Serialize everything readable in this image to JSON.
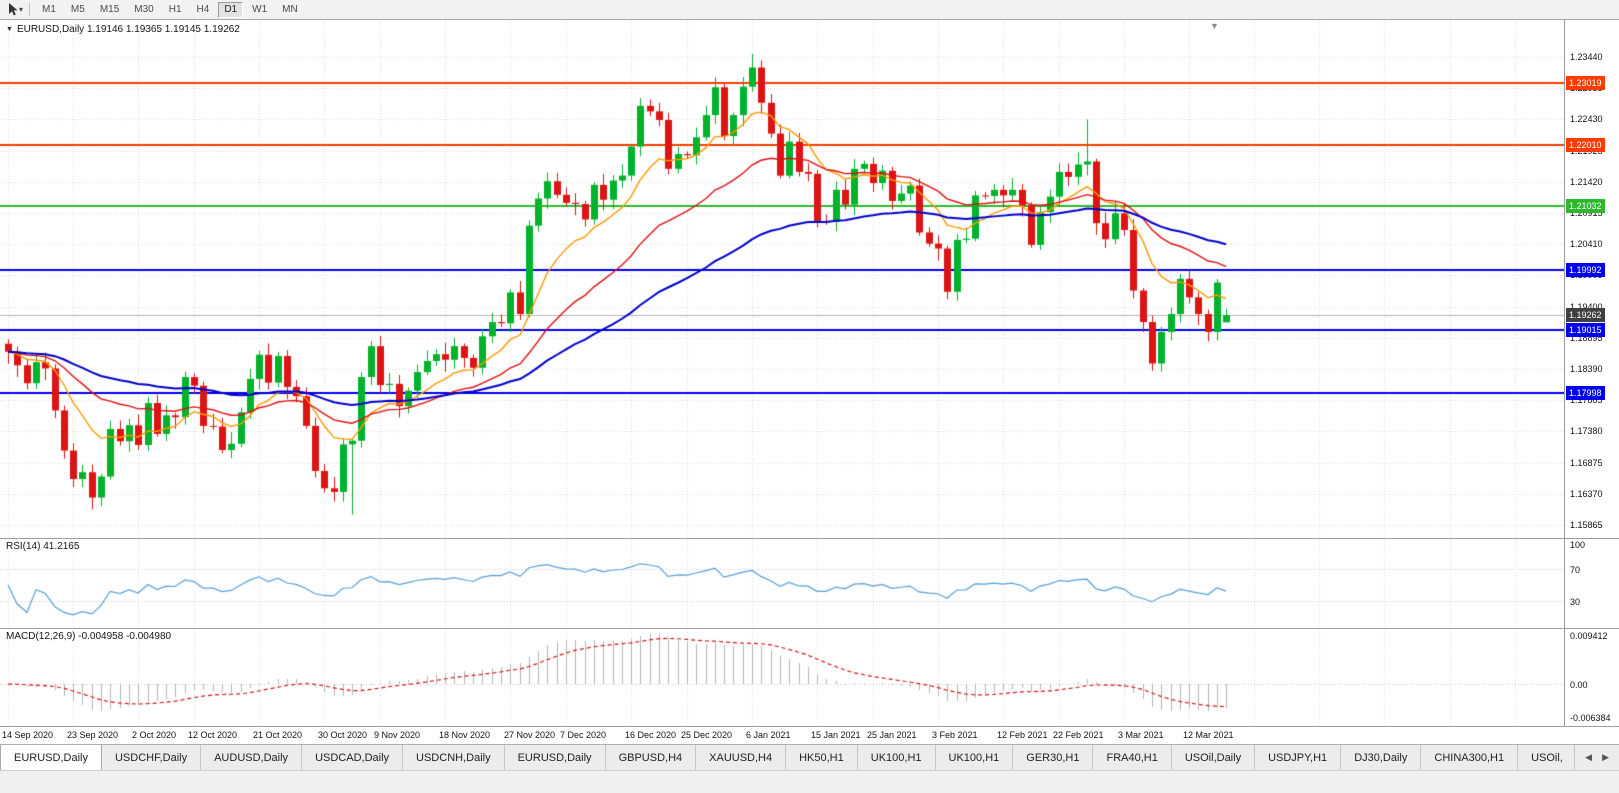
{
  "toolbar": {
    "icons": [
      {
        "name": "cursor-arrow-icon"
      },
      {
        "name": "dropdown-caret-icon"
      }
    ],
    "timeframes": [
      {
        "label": "M1",
        "active": false
      },
      {
        "label": "M5",
        "active": false
      },
      {
        "label": "M15",
        "active": false
      },
      {
        "label": "M30",
        "active": false
      },
      {
        "label": "H1",
        "active": false
      },
      {
        "label": "H4",
        "active": false
      },
      {
        "label": "D1",
        "active": true
      },
      {
        "label": "W1",
        "active": false
      },
      {
        "label": "MN",
        "active": false
      }
    ]
  },
  "chart": {
    "title": "EURUSD,Daily 1.19146 1.19365 1.19145 1.19262",
    "symbol": "EURUSD",
    "timeframe": "Daily",
    "ohlc": {
      "open": "1.19146",
      "high": "1.19365",
      "low": "1.19145",
      "close": "1.19262"
    }
  },
  "price_axis": {
    "ticks": [
      "1.23440",
      "1.22935",
      "1.22430",
      "1.21925",
      "1.21420",
      "1.20915",
      "1.20410",
      "1.19905",
      "1.19400",
      "1.18895",
      "1.18390",
      "1.17885",
      "1.17380",
      "1.16875",
      "1.16370",
      "1.15865"
    ],
    "current": {
      "label": "1.19262",
      "price": 1.19262,
      "bg": "#3f3f3f"
    }
  },
  "chart_data": {
    "type": "candlestick",
    "title": "EURUSD Daily",
    "x_labels": [
      "14 Sep 2020",
      "23 Sep 2020",
      "2 Oct 2020",
      "12 Oct 2020",
      "21 Oct 2020",
      "30 Oct 2020",
      "9 Nov 2020",
      "18 Nov 2020",
      "27 Nov 2020",
      "7 Dec 2020",
      "16 Dec 2020",
      "25 Dec 2020",
      "6 Jan 2021",
      "15 Jan 2021",
      "25 Jan 2021",
      "3 Feb 2021",
      "12 Feb 2021",
      "22 Feb 2021",
      "3 Mar 2021",
      "12 Mar 2021"
    ],
    "x_label_indices": [
      0,
      7,
      14,
      20,
      27,
      34,
      40,
      47,
      54,
      60,
      67,
      73,
      80,
      87,
      93,
      100,
      107,
      113,
      120,
      127
    ],
    "price_range": {
      "min": 1.15655,
      "max": 1.24039
    },
    "first_open": 1.188,
    "closes": [
      1.1867,
      1.1845,
      1.1816,
      1.185,
      1.184,
      1.1772,
      1.1707,
      1.1661,
      1.1672,
      1.1631,
      1.1665,
      1.1742,
      1.1722,
      1.1748,
      1.1716,
      1.1784,
      1.1734,
      1.1764,
      1.1761,
      1.1826,
      1.1812,
      1.1747,
      1.1746,
      1.1708,
      1.1718,
      1.1769,
      1.1823,
      1.1862,
      1.1817,
      1.186,
      1.181,
      1.1795,
      1.1747,
      1.1674,
      1.1646,
      1.164,
      1.1717,
      1.1723,
      1.1826,
      1.1876,
      1.1813,
      1.1815,
      1.1779,
      1.1804,
      1.1834,
      1.1852,
      1.1863,
      1.1854,
      1.1876,
      1.1857,
      1.1841,
      1.1892,
      1.1915,
      1.1913,
      1.1963,
      1.1928,
      1.2071,
      1.2115,
      1.2143,
      1.2121,
      1.2108,
      1.2106,
      1.2081,
      1.2137,
      1.2113,
      1.2144,
      1.2152,
      1.2199,
      1.2265,
      1.2256,
      1.2242,
      1.2163,
      1.2187,
      1.2185,
      1.2214,
      1.225,
      1.2295,
      1.2216,
      1.225,
      1.2296,
      1.2327,
      1.227,
      1.222,
      1.2152,
      1.2207,
      1.2158,
      1.2155,
      1.2078,
      1.2077,
      1.2129,
      1.2105,
      1.2163,
      1.2171,
      1.214,
      1.216,
      1.2111,
      1.2123,
      1.2136,
      1.206,
      1.2042,
      1.2034,
      1.1964,
      1.2048,
      1.205,
      1.212,
      1.2119,
      1.2129,
      1.212,
      1.2129,
      1.2104,
      1.204,
      1.2093,
      1.2118,
      1.2158,
      1.215,
      1.217,
      1.2175,
      1.2075,
      1.2049,
      1.2091,
      1.2064,
      1.1966,
      1.1915,
      1.1848,
      1.1899,
      1.1928,
      1.1985,
      1.1955,
      1.1928,
      1.1899,
      1.1979,
      1.19262
    ],
    "specials": {
      "9": {
        "l": 1.1612
      },
      "37": {
        "l": 1.1603
      },
      "80": {
        "h": 1.2349
      },
      "101": {
        "l": 1.1952
      },
      "116": {
        "h": 1.2243
      },
      "123": {
        "l": 1.1836
      },
      "131": {
        "o": 1.19146,
        "h": 1.19365,
        "l": 1.19145
      }
    },
    "moving_averages": [
      {
        "name": "fast",
        "period": 10,
        "color": "#ff9900",
        "width": 1.4
      },
      {
        "name": "medium",
        "period": 25,
        "color": "#e01010",
        "width": 1.4
      },
      {
        "name": "slow",
        "period": 55,
        "color": "#0000cc",
        "width": 2
      }
    ],
    "h_lines": [
      {
        "label": "1.23019",
        "price": 1.23019,
        "color": "#ff3c00"
      },
      {
        "label": "1.22010",
        "price": 1.2201,
        "color": "#ff3c00"
      },
      {
        "label": "1.21032",
        "price": 1.21032,
        "color": "#2db82d"
      },
      {
        "label": "1.19992",
        "price": 1.19992,
        "color": "#0000f0"
      },
      {
        "label": "1.19015",
        "price": 1.19015,
        "color": "#0000f0"
      },
      {
        "label": "1.17998",
        "price": 1.17998,
        "color": "#0000f0"
      }
    ],
    "current_price": 1.19262,
    "indicators": {
      "rsi": {
        "label": "RSI(14) 41.2165",
        "period": 14,
        "value": 41.2165,
        "levels": [
          70,
          30
        ],
        "axis": [
          "100",
          "70",
          "30"
        ],
        "color": "#55a0d7"
      },
      "macd": {
        "label": "MACD(12,26,9) -0.004958 -0.004980",
        "fast": 12,
        "slow": 26,
        "signal": 9,
        "value": -0.004958,
        "signal_value": -0.00498,
        "axis": [
          "0.009412",
          "0.00",
          "-0.006384"
        ],
        "range": {
          "min": -0.0069,
          "max": 0.01
        }
      }
    }
  },
  "tab_bar": {
    "scroll_left_icon": "◀",
    "scroll_right_icon": "▶"
  },
  "tabs": [
    {
      "label": "EURUSD,Daily",
      "active": true
    },
    {
      "label": "USDCHF,Daily",
      "active": false
    },
    {
      "label": "AUDUSD,Daily",
      "active": false
    },
    {
      "label": "USDCAD,Daily",
      "active": false
    },
    {
      "label": "USDCNH,Daily",
      "active": false
    },
    {
      "label": "EURUSD,Daily",
      "active": false
    },
    {
      "label": "GBPUSD,H4",
      "active": false
    },
    {
      "label": "XAUUSD,H4",
      "active": false
    },
    {
      "label": "HK50,H1",
      "active": false
    },
    {
      "label": "UK100,H1",
      "active": false
    },
    {
      "label": "UK100,H1",
      "active": false
    },
    {
      "label": "GER30,H1",
      "active": false
    },
    {
      "label": "FRA40,H1",
      "active": false
    },
    {
      "label": "USOil,Daily",
      "active": false
    },
    {
      "label": "USDJPY,H1",
      "active": false
    },
    {
      "label": "DJ30,Daily",
      "active": false
    },
    {
      "label": "CHINA300,H1",
      "active": false
    },
    {
      "label": "USOil,",
      "active": false
    }
  ],
  "colors": {
    "bull": "#00b22c",
    "bear": "#dd1414",
    "grid": "#d9d9d9",
    "current_line": "#b4b4b4",
    "rsi_level": "#c9c9c9",
    "macd_hist": "#b4b4b4",
    "macd_signal": "#dd1414",
    "axis_text": "#111111"
  }
}
